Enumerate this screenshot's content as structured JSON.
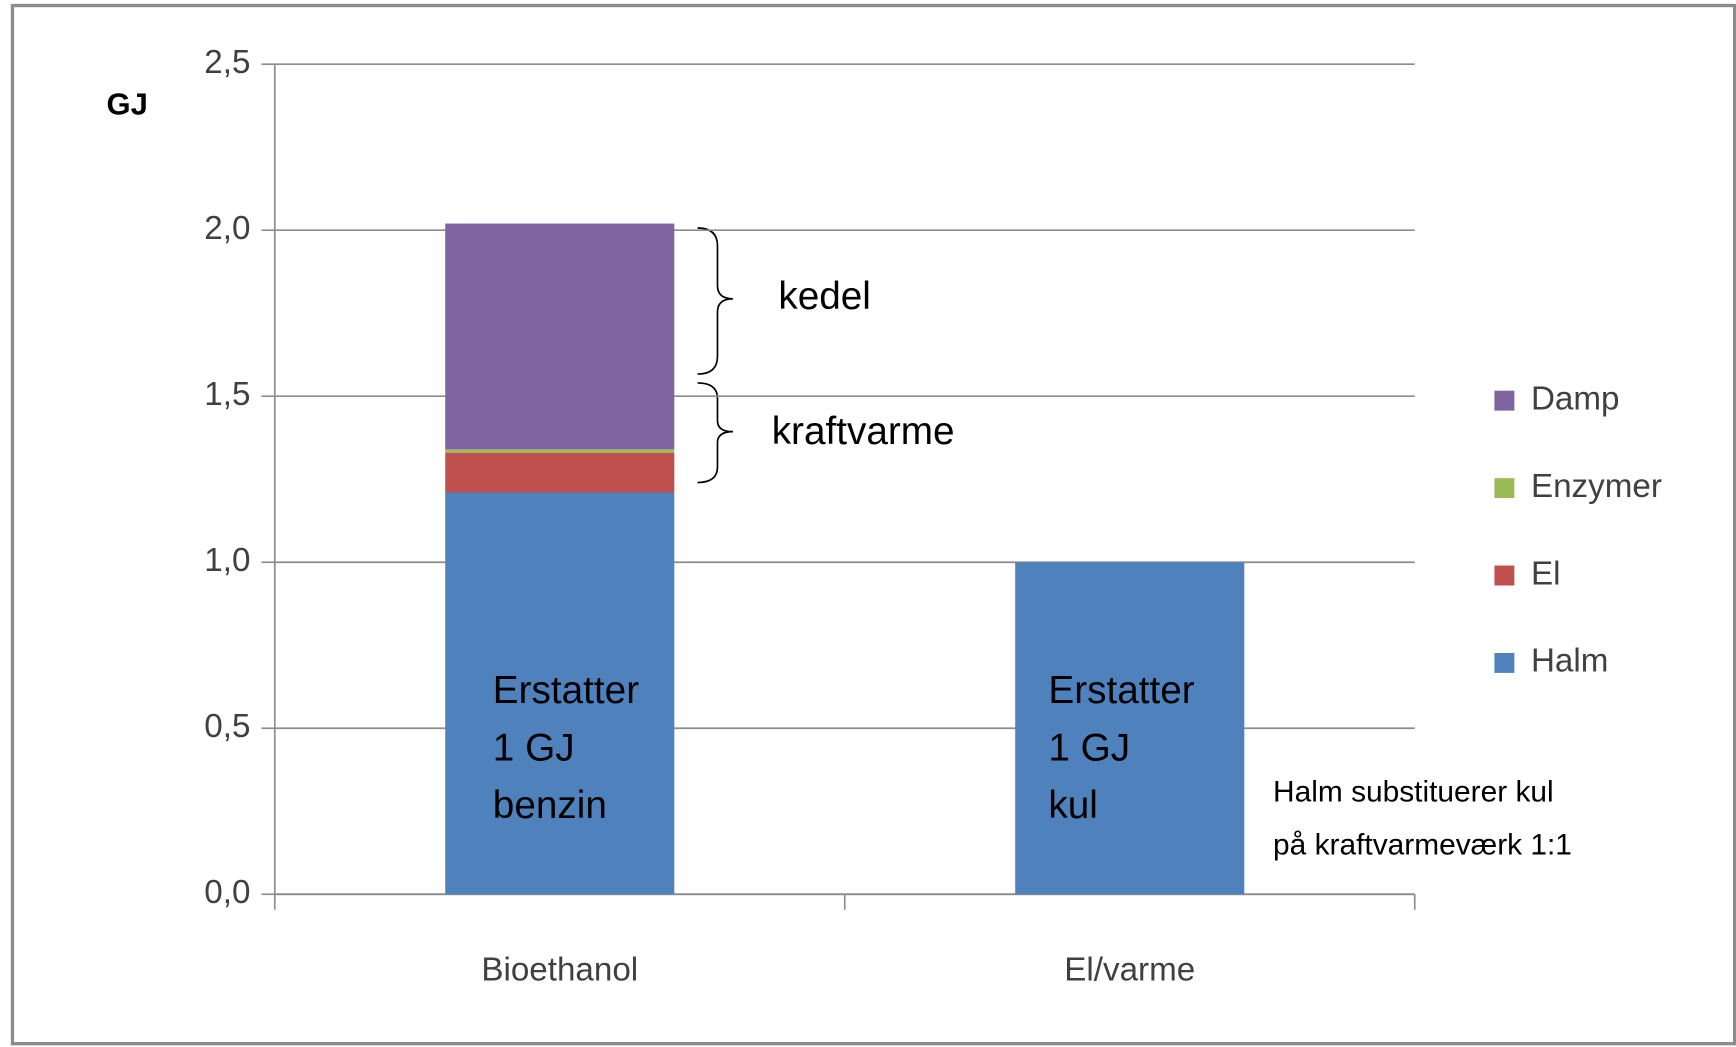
{
  "chart_data": {
    "type": "stacked-bar",
    "y_label": "GJ",
    "categories": [
      "Bioethanol",
      "El/varme"
    ],
    "series": [
      {
        "name": "Halm",
        "color": "#4f81bd",
        "values": [
          1.21,
          1.0
        ]
      },
      {
        "name": "El",
        "color": "#c0504d",
        "values": [
          0.12,
          0
        ]
      },
      {
        "name": "Enzymer",
        "color": "#9bbb59",
        "values": [
          0.01,
          0
        ]
      },
      {
        "name": "Damp",
        "color": "#8064a2",
        "values": [
          0.68,
          0
        ]
      }
    ],
    "ylim": [
      0,
      2.5
    ],
    "yticks": [
      {
        "value": 0,
        "label": "0,0"
      },
      {
        "value": 0.5,
        "label": "0,5"
      },
      {
        "value": 1,
        "label": "1,0"
      },
      {
        "value": 1.5,
        "label": "1,5"
      },
      {
        "value": 2,
        "label": "2,0"
      },
      {
        "value": 2.5,
        "label": "2,5"
      }
    ],
    "grid": true,
    "legend": "right",
    "annotations": [
      {
        "lines": [
          "kedel"
        ]
      },
      {
        "lines": [
          "kraftvarme"
        ]
      },
      {
        "lines": [
          "Erstatter",
          "1 GJ",
          "benzin"
        ]
      },
      {
        "lines": [
          "Erstatter",
          "1 GJ",
          "kul"
        ]
      },
      {
        "lines": [
          "Halm substituerer kul",
          "på kraftvarmeværk 1:1"
        ]
      }
    ]
  }
}
